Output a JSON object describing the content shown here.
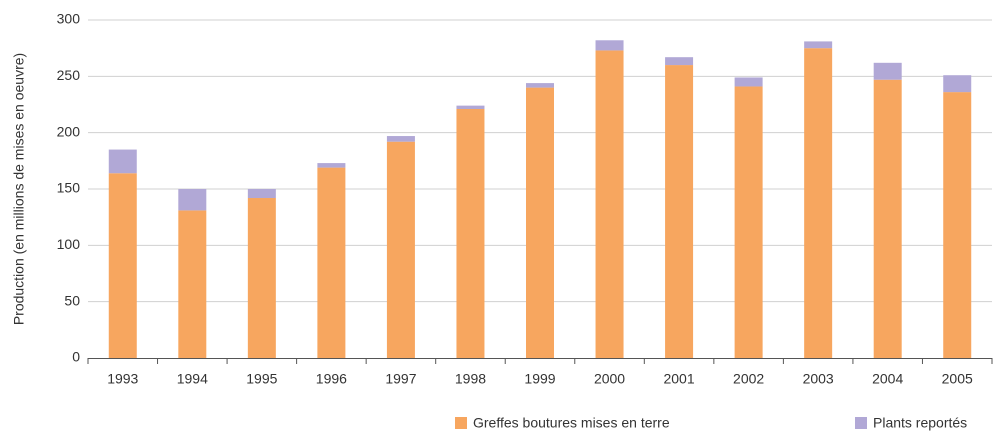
{
  "chart_data": {
    "type": "stacked-bar",
    "y_axis_label": "Production (en millions de mises en oeuvre)",
    "categories": [
      "1993",
      "1994",
      "1995",
      "1996",
      "1997",
      "1998",
      "1999",
      "2000",
      "2001",
      "2002",
      "2003",
      "2004",
      "2005"
    ],
    "series": [
      {
        "name": "Greffes boutures mises en terre",
        "color": "#f7a65f",
        "values": [
          164,
          131,
          142,
          169,
          192,
          221,
          240,
          273,
          260,
          241,
          275,
          247,
          236
        ]
      },
      {
        "name": "Plants reportés",
        "color": "#b1a8d6",
        "values": [
          21,
          19,
          8,
          4,
          5,
          3,
          4,
          9,
          7,
          8,
          6,
          15,
          15
        ]
      }
    ],
    "ylim": [
      0,
      300
    ],
    "yticks": [
      0,
      50,
      100,
      150,
      200,
      250,
      300
    ],
    "grid": true
  }
}
